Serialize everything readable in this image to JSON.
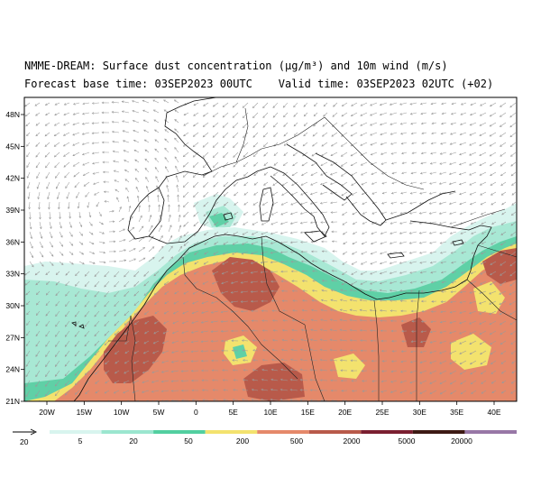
{
  "title_line1": "NMME-DREAM: Surface dust concentration (µg/m³) and 10m wind (m/s)",
  "title_line2": "Forecast base time: 03SEP2023 00UTC    Valid time: 03SEP2023 02UTC (+02)",
  "lat_ticks": [
    "48N",
    "45N",
    "42N",
    "39N",
    "36N",
    "33N",
    "30N",
    "27N",
    "24N",
    "21N"
  ],
  "lon_ticks": [
    "20W",
    "15W",
    "10W",
    "5W",
    "0",
    "5E",
    "10E",
    "15E",
    "20E",
    "25E",
    "30E",
    "35E",
    "40E"
  ],
  "wind_reference": {
    "label": "20"
  },
  "colorbar": {
    "labels": [
      "5",
      "20",
      "50",
      "200",
      "500",
      "2000",
      "5000",
      "20000"
    ],
    "colors": [
      "#d8f4ee",
      "#9be6cf",
      "#52cfa0",
      "#f3e26e",
      "#e5896a",
      "#b85a4a",
      "#7a1f30",
      "#3d1a14",
      "#9877a6"
    ]
  },
  "dust_colors": {
    "c5": "#d8f4ee",
    "c20": "#a8e8d4",
    "c50": "#5fd0a6",
    "c200": "#f3e26e",
    "c500": "#e5896a",
    "c2000": "#b85a4a"
  }
}
